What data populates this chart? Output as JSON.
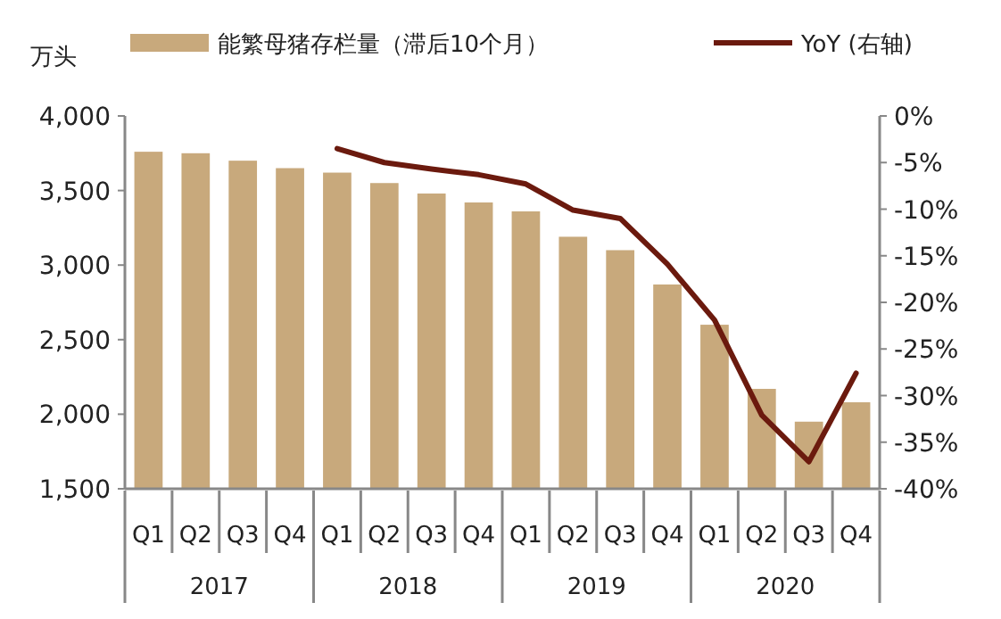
{
  "chart_data": {
    "type": "bar",
    "ylabel": "万头",
    "legend": "top",
    "grid": false,
    "categories": [
      "Q1",
      "Q2",
      "Q3",
      "Q4",
      "Q1",
      "Q2",
      "Q3",
      "Q4",
      "Q1",
      "Q2",
      "Q3",
      "Q4",
      "Q1",
      "Q2",
      "Q3",
      "Q4"
    ],
    "annotations": [
      "2017",
      "2018",
      "2019",
      "2020"
    ],
    "series": [
      {
        "name": "能繁母猪存栏量（滞后10个月）",
        "color": "#c8a97c",
        "values": [
          3760,
          3750,
          3700,
          3650,
          3620,
          3550,
          3480,
          3420,
          3360,
          3190,
          3100,
          2870,
          2600,
          2170,
          1950,
          2080
        ]
      },
      {
        "name": "YoY (右轴)",
        "type": "line",
        "axis": "y2",
        "color": "#6b1a0e",
        "values": [
          null,
          null,
          null,
          null,
          -3.5,
          -5.0,
          -5.7,
          -6.3,
          -7.3,
          -10.1,
          -11.0,
          -15.9,
          -21.9,
          -32.1,
          -37.1,
          -27.6
        ]
      }
    ],
    "ylim": [
      1500,
      4000
    ],
    "yticks": [
      {
        "value": 1500,
        "label": "1,500"
      },
      {
        "value": 2000,
        "label": "2,000"
      },
      {
        "value": 2500,
        "label": "2,500"
      },
      {
        "value": 3000,
        "label": "3,000"
      },
      {
        "value": 3500,
        "label": "3,500"
      },
      {
        "value": 4000,
        "label": "4,000"
      }
    ],
    "y2lim": [
      -40,
      0
    ],
    "y2ticks": [
      {
        "value": 0,
        "label": "0%"
      },
      {
        "value": -5,
        "label": "-5%"
      },
      {
        "value": -10,
        "label": "-10%"
      },
      {
        "value": -15,
        "label": "-15%"
      },
      {
        "value": -20,
        "label": "-20%"
      },
      {
        "value": -25,
        "label": "-25%"
      },
      {
        "value": -30,
        "label": "-30%"
      },
      {
        "value": -35,
        "label": "-35%"
      },
      {
        "value": -40,
        "label": "-40%"
      }
    ]
  }
}
